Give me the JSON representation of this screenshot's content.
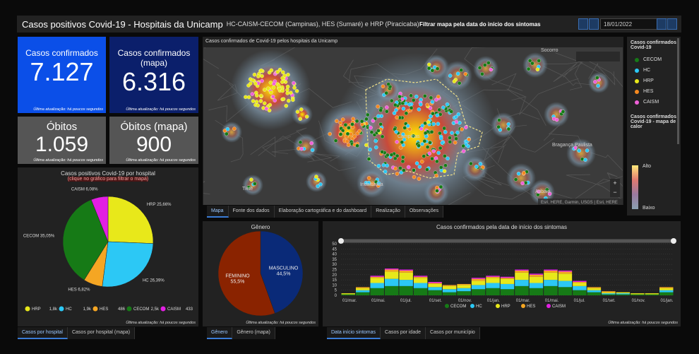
{
  "header": {
    "title": "Casos positivos Covid-19 - Hospitais da Unicamp",
    "subtitle": "HC-CAISM-CECOM (Campinas), HES (Sumaré) e HRP (Piracicaba)",
    "filter_label": "Filtrar mapa pela data do início dos sintomas",
    "date": "18/01/2022"
  },
  "indicators": [
    {
      "label": "Casos confirmados",
      "value": "7.127",
      "footer": "Última atualização: há poucos segundos",
      "color": "#0b4fe8"
    },
    {
      "label": "Casos confirmados (mapa)",
      "value": "6.316",
      "footer": "Última atualização: há poucos segundos",
      "color": "#0b1f6b"
    },
    {
      "label": "Óbitos",
      "value": "1.059",
      "footer": "Última atualização: há poucos segundos",
      "color": "#555555"
    },
    {
      "label": "Óbitos (mapa)",
      "value": "900",
      "footer": "Última atualização: há poucos segundos",
      "color": "#555555"
    }
  ],
  "hospital_chart": {
    "type": "pie",
    "title": "Casos positivos Covid-19 por hospital",
    "subtitle": "(clique no gráfico para filtrar o mapa)",
    "categories": [
      "HRP",
      "HC",
      "HES",
      "CECOM",
      "CAISM"
    ],
    "values": [
      25.66,
      26.39,
      6.82,
      35.05,
      6.08
    ],
    "value_labels": [
      "25,66%",
      "26,39%",
      "6,82%",
      "35,05%",
      "6,08%"
    ],
    "colors": [
      "#e8e81a",
      "#2cc8f5",
      "#f5a623",
      "#167a16",
      "#e21fe2"
    ],
    "legend_values": [
      "1,8k",
      "1,9k",
      "486",
      "2,5k",
      "433"
    ],
    "footer": "Última atualização: há poucos segundos",
    "tabs": [
      "Casos por hospital",
      "Casos por hospital (mapa)"
    ]
  },
  "map": {
    "title": "Casos confirmados de Covid-19 pelos hospitais da Unicamp",
    "places": [
      "Campinas",
      "Indaiatuba",
      "Atibaia",
      "Bragança Paulista",
      "Socorro",
      "Tietê"
    ],
    "attribution": "Esri, HERE, Garmin, USGS | Esri, HERE",
    "tabs": [
      "Mapa",
      "Fonte dos dados",
      "Elaboração cartográfica e do dashboard",
      "Realização",
      "Observações"
    ]
  },
  "map_legend": {
    "title": "Casos confirmados Covid-19",
    "items": [
      {
        "name": "CECOM",
        "color": "#167a16"
      },
      {
        "name": "HC",
        "color": "#2cc8f5"
      },
      {
        "name": "HRP",
        "color": "#e8e81a"
      },
      {
        "name": "HES",
        "color": "#f5891f"
      },
      {
        "name": "CAISM",
        "color": "#f060d8"
      }
    ],
    "heat_title": "Casos confirmados Covid-19 - mapa de calor",
    "high": "Alto",
    "low": "Baixo"
  },
  "gender_chart": {
    "type": "pie",
    "title": "Gênero",
    "categories": [
      "MASCULINO",
      "FEMININO"
    ],
    "values": [
      44.5,
      55.5
    ],
    "value_labels": [
      "44,5%",
      "55,5%"
    ],
    "colors": [
      "#0a2a78",
      "#8a2300"
    ],
    "footer": "Última atualização: há poucos segundos",
    "tabs": [
      "Gênero",
      "Gênero (mapa)"
    ]
  },
  "time_chart": {
    "type": "bar",
    "stacked": true,
    "title": "Casos confirmados pela data de início dos sintomas",
    "categories": [
      "01/mar.",
      null,
      "01/mai.",
      null,
      "01/jul.",
      null,
      "01/set.",
      null,
      "01/nov.",
      null,
      "01/jan.",
      null,
      "01/mar.",
      null,
      "01/mai.",
      null,
      "01/jul.",
      null,
      "01/set.",
      null,
      "01/nov.",
      null,
      "01/jan."
    ],
    "series": [
      {
        "name": "CECOM",
        "color": "#167a16",
        "values": [
          1,
          3,
          7,
          9,
          9,
          7,
          5,
          3,
          4,
          6,
          7,
          6,
          9,
          7,
          9,
          8,
          5,
          3,
          1,
          1,
          1,
          1,
          3
        ]
      },
      {
        "name": "HC",
        "color": "#2cc8f5",
        "values": [
          0,
          2,
          5,
          7,
          6,
          5,
          3,
          3,
          3,
          4,
          5,
          5,
          6,
          5,
          6,
          6,
          4,
          2,
          1,
          1,
          0,
          0,
          2
        ]
      },
      {
        "name": "HRP",
        "color": "#e8e81a",
        "values": [
          1,
          2,
          5,
          7,
          7,
          5,
          3,
          3,
          3,
          4,
          5,
          5,
          7,
          6,
          7,
          7,
          3,
          2,
          1,
          1,
          1,
          1,
          2
        ]
      },
      {
        "name": "HES",
        "color": "#f5a623",
        "values": [
          0,
          1,
          1,
          2,
          2,
          1,
          1,
          1,
          1,
          2,
          1,
          1,
          2,
          2,
          2,
          2,
          1,
          1,
          1,
          0,
          0,
          0,
          1
        ]
      },
      {
        "name": "CAISM",
        "color": "#e21fe2",
        "values": [
          0,
          0,
          1,
          1,
          1,
          1,
          1,
          0,
          0,
          1,
          1,
          1,
          1,
          1,
          1,
          1,
          1,
          0,
          0,
          0,
          0,
          0,
          0
        ]
      }
    ],
    "ylim": [
      0,
      50
    ],
    "yticks": [
      0,
      5,
      10,
      15,
      20,
      25,
      30,
      35,
      40,
      45,
      50
    ],
    "grid": true,
    "footer": "Última atualização: há poucos segundos",
    "tabs": [
      "Data início sintomas",
      "Casos por idade",
      "Casos por município"
    ]
  }
}
